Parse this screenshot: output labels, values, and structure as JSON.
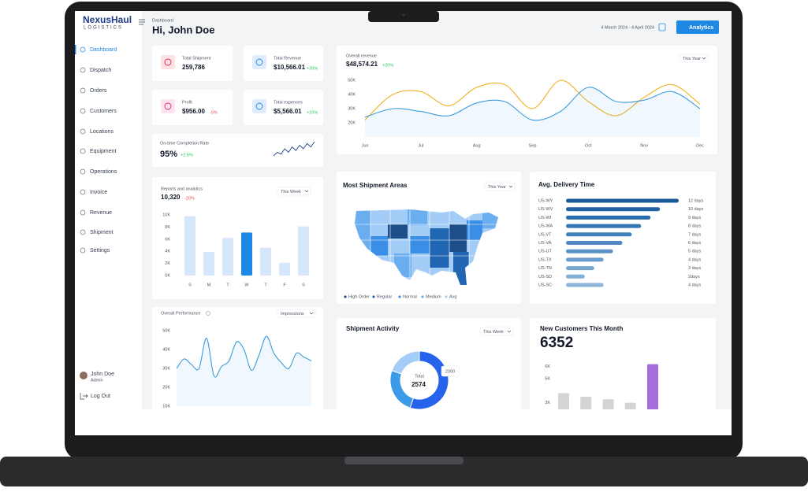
{
  "brand": {
    "name": "NexusHaul",
    "tagline": "LOGISTICS"
  },
  "sidebar": {
    "items": [
      "Dashboard",
      "Dispatch",
      "Orders",
      "Customers",
      "Locations",
      "Equipment",
      "Operations",
      "Invoice",
      "Revenue",
      "Shipment",
      "Settings"
    ]
  },
  "user": {
    "name": "John Doe",
    "role": "Admin"
  },
  "logout": "Log Out",
  "header": {
    "breadcrumb": "Dashboard",
    "greeting": "Hi, John Doe",
    "date_range": "4 March 2024 - 4 April 2024",
    "button": "Analytics"
  },
  "stats": [
    {
      "label": "Total Shipment",
      "value": "259,786"
    },
    {
      "label": "Total Revenue",
      "value": "$10,566.01",
      "change": "+35%"
    },
    {
      "label": "Profit",
      "value": "$956.00",
      "change": "-5%"
    },
    {
      "label": "Total expenses",
      "value": "$5,566.01",
      "change": "+15%"
    }
  ],
  "completion": {
    "label": "On-time Completion Rate",
    "value": "95%",
    "change": "+2.5%"
  },
  "map": {
    "title": "Most Shipment Areas",
    "period": "This Year",
    "legend": [
      {
        "name": "High Order",
        "color": "#1d4e89"
      },
      {
        "name": "Regular",
        "color": "#2166b3"
      },
      {
        "name": "Normal",
        "color": "#3b8ee6"
      },
      {
        "name": "Medium",
        "color": "#6aaef0"
      },
      {
        "name": "Avg",
        "color": "#a3cdf7"
      }
    ]
  },
  "chart_data": [
    {
      "type": "line",
      "title": "Overall revenue",
      "value": "$48,574.21",
      "change": "+20%",
      "period": "This Year",
      "categories": [
        "Jun",
        null,
        "Jul",
        null,
        "Aug",
        null,
        "Sep",
        null,
        "Oct",
        null,
        "Nov",
        null,
        "Dec"
      ],
      "series": [
        {
          "color": "#f5b021",
          "values": [
            22000,
            40000,
            42000,
            32000,
            45000,
            47000,
            30000,
            50000,
            35000,
            25000,
            38000,
            47000,
            33000
          ]
        },
        {
          "color": "#3b9bdc",
          "values": [
            24000,
            30000,
            28000,
            25000,
            34000,
            35000,
            22000,
            28000,
            45000,
            35000,
            36000,
            42000,
            30000
          ]
        }
      ],
      "ylim": [
        10000,
        55000
      ],
      "yticks": [
        {
          "value": 20000,
          "label": "20K"
        },
        {
          "value": 30000,
          "label": "30K"
        },
        {
          "value": 40000,
          "label": "40K"
        },
        {
          "value": 50000,
          "label": "50K"
        }
      ]
    },
    {
      "type": "bar",
      "title": "Reports and analytics",
      "value": "10,320",
      "change": "-20%",
      "period": "This Week",
      "categories": [
        "S",
        "M",
        "T",
        "W",
        "T",
        "F",
        "S"
      ],
      "values": [
        9800,
        3900,
        6200,
        7100,
        4600,
        2100,
        8100
      ],
      "colors": [
        "#d6e6fb",
        "#d6e6fb",
        "#d6e6fb",
        "#1e88e5",
        "#d6e6fb",
        "#d6e6fb",
        "#d6e6fb"
      ],
      "ylim": [
        0,
        10000
      ],
      "yticks": [
        {
          "value": 0,
          "label": "0K"
        },
        {
          "value": 2000,
          "label": "2K"
        },
        {
          "value": 4000,
          "label": "4K"
        },
        {
          "value": 6000,
          "label": "6K"
        },
        {
          "value": 8000,
          "label": "8K"
        },
        {
          "value": 10000,
          "label": "10K"
        }
      ]
    },
    {
      "type": "line",
      "title": "Overall Performance",
      "period": "Impressions",
      "series": [
        {
          "color": "#3b9bdc",
          "values": [
            30000,
            35000,
            32000,
            30000,
            46000,
            26000,
            31000,
            34000,
            44000,
            40000,
            29000,
            37000,
            47000,
            38000,
            33000,
            30000,
            38000,
            36000,
            34000
          ]
        }
      ],
      "ylim": [
        10000,
        50000
      ],
      "yticks": [
        {
          "value": 10000,
          "label": "10K"
        },
        {
          "value": 20000,
          "label": "20K"
        },
        {
          "value": 30000,
          "label": "30K"
        },
        {
          "value": 40000,
          "label": "40K"
        },
        {
          "value": 50000,
          "label": "50K"
        }
      ]
    },
    {
      "type": "hbar",
      "title": "Avg. Delivery Time",
      "categories": [
        "US-WY",
        "US-WV",
        "US-WI",
        "US-WA",
        "US-VT",
        "US-VA",
        "US-UT",
        "US-TX",
        "US-TN",
        "US-SD",
        "US-SC"
      ],
      "values": [
        12,
        10,
        9,
        8,
        7,
        6,
        5,
        4,
        3,
        2,
        4
      ],
      "value_labels": [
        "12 days",
        "10 days",
        "9 days",
        "8 days",
        "7 days",
        "6 days",
        "5 days",
        "4 days",
        "3 days",
        "2days",
        "4 days"
      ],
      "colors": [
        "#1b5a98",
        "#1f63a4",
        "#2a6cad",
        "#3575b4",
        "#4280bc",
        "#4f89c2",
        "#5b93c8",
        "#6a9dcd",
        "#77a6d2",
        "#84afd7",
        "#8fb6da"
      ]
    },
    {
      "type": "donut",
      "title": "Shipment Activity",
      "period": "This Week",
      "center_label": "Total",
      "center_value": "2574",
      "tooltip": "2300",
      "values": [
        1420,
        650,
        504
      ],
      "colors": [
        "#2563eb",
        "#3b9be8",
        "#a3cdf7"
      ]
    },
    {
      "type": "bar",
      "title": "New Customers This Month",
      "value": "6352",
      "values": [
        3800,
        3500,
        3300,
        3000,
        6200
      ],
      "colors": [
        "#d4d4d4",
        "#d4d4d4",
        "#d4d4d4",
        "#d4d4d4",
        "#a66ddb"
      ],
      "ylim": [
        2000,
        6500
      ],
      "yticks": [
        {
          "value": 3000,
          "label": "3K"
        },
        {
          "value": 5000,
          "label": "5K"
        },
        {
          "value": 6000,
          "label": "6K"
        }
      ]
    },
    {
      "type": "sparkline",
      "color": "#1e3a8a",
      "values": [
        3,
        5,
        4,
        7,
        5,
        8,
        6,
        9,
        7,
        10,
        8,
        11
      ]
    }
  ]
}
